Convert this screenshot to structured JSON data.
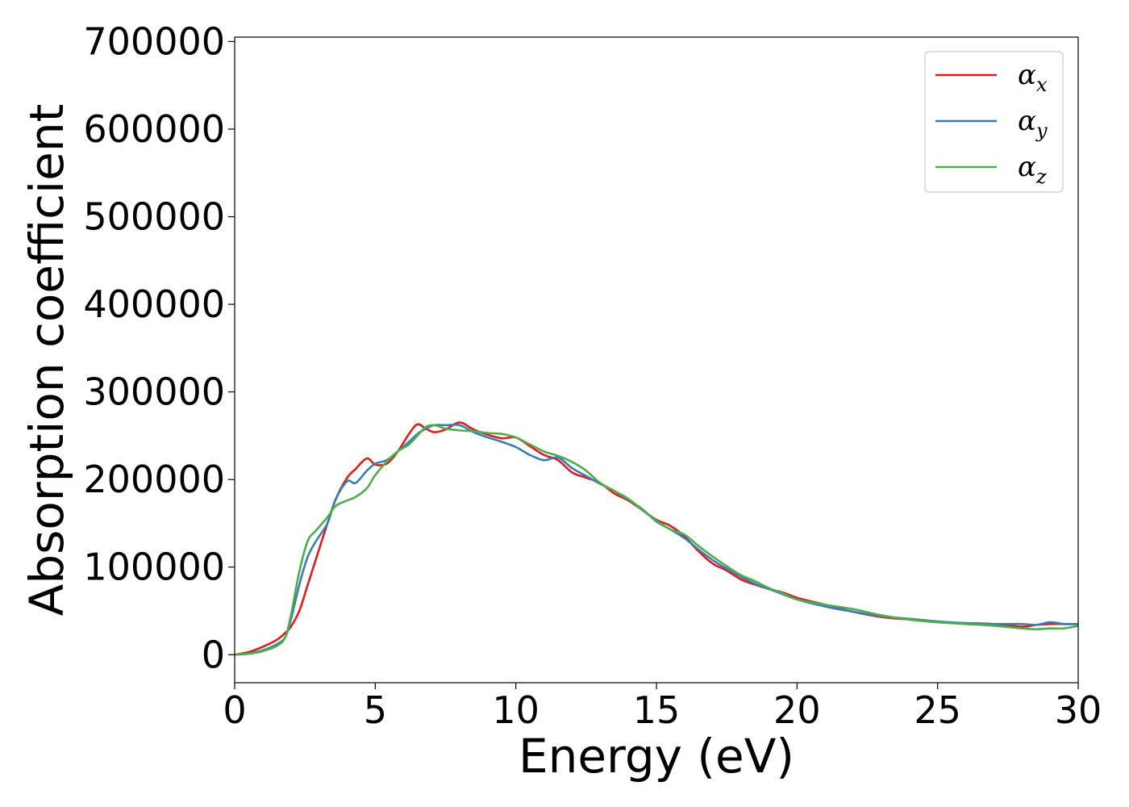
{
  "chart_data": {
    "type": "line",
    "title": "",
    "xlabel": "Energy (eV)",
    "ylabel": "Absorption coefficient",
    "xlim": [
      0,
      30
    ],
    "ylim": [
      -32000,
      705000
    ],
    "x_ticks": [
      0,
      5,
      10,
      15,
      20,
      25,
      30
    ],
    "x_tick_labels": [
      "0",
      "5",
      "10",
      "15",
      "20",
      "25",
      "30"
    ],
    "y_ticks": [
      0,
      100000,
      200000,
      300000,
      400000,
      500000,
      600000,
      700000
    ],
    "y_tick_labels": [
      "0",
      "100000",
      "200000",
      "300000",
      "400000",
      "500000",
      "600000",
      "700000"
    ],
    "grid": false,
    "legend_position": "top-right",
    "series": [
      {
        "name": "α",
        "subscript": "x",
        "color": "#e41a1c",
        "x": [
          0,
          0.5,
          1,
          1.5,
          1.8,
          2,
          2.3,
          2.6,
          2.9,
          3.3,
          3.6,
          4,
          4.3,
          4.7,
          5,
          5.4,
          5.8,
          6.2,
          6.5,
          6.8,
          7.1,
          7.5,
          8,
          8.5,
          9,
          9.5,
          10,
          10.5,
          11,
          11.5,
          12,
          12.5,
          13,
          13.5,
          14,
          14.5,
          15,
          15.5,
          16,
          16.5,
          17,
          17.5,
          18,
          18.5,
          19,
          19.5,
          20,
          21,
          22,
          23,
          24,
          25,
          26,
          27,
          28,
          28.5,
          29,
          29.5,
          30
        ],
        "y": [
          0,
          3000,
          9000,
          17000,
          25000,
          32000,
          50000,
          80000,
          110000,
          150000,
          178000,
          202000,
          212000,
          224000,
          217000,
          218000,
          232000,
          252000,
          263000,
          258000,
          254000,
          257000,
          265000,
          257000,
          251000,
          247000,
          248000,
          238000,
          228000,
          222000,
          208000,
          202000,
          196000,
          184000,
          176000,
          165000,
          154000,
          147000,
          135000,
          118000,
          104000,
          96000,
          86000,
          80000,
          75000,
          71000,
          65000,
          57000,
          49000,
          43000,
          40000,
          37000,
          36000,
          35000,
          32000,
          34000,
          35000,
          35000,
          35000
        ]
      },
      {
        "name": "α",
        "subscript": "y",
        "color": "#377eb8",
        "x": [
          0,
          0.5,
          1,
          1.5,
          1.8,
          2,
          2.3,
          2.6,
          2.9,
          3.3,
          3.6,
          4,
          4.3,
          4.7,
          5,
          5.4,
          5.8,
          6.2,
          6.5,
          6.8,
          7.1,
          7.5,
          8,
          8.5,
          9,
          9.5,
          10,
          10.5,
          11,
          11.5,
          12,
          12.5,
          13,
          13.5,
          14,
          14.5,
          15,
          15.5,
          16,
          16.5,
          17,
          17.5,
          18,
          18.5,
          19,
          19.5,
          20,
          21,
          22,
          23,
          24,
          25,
          26,
          27,
          28,
          28.5,
          29,
          29.5,
          30
        ],
        "y": [
          0,
          1500,
          5000,
          12000,
          20000,
          40000,
          80000,
          112000,
          130000,
          150000,
          178000,
          198000,
          196000,
          210000,
          218000,
          222000,
          232000,
          243000,
          252000,
          258000,
          262000,
          262000,
          262000,
          254000,
          248000,
          243000,
          237000,
          228000,
          222000,
          225000,
          213000,
          204000,
          195000,
          187000,
          177000,
          166000,
          152000,
          143000,
          133000,
          120000,
          108000,
          98000,
          89000,
          81000,
          75000,
          69000,
          63000,
          55000,
          49000,
          44000,
          41000,
          38000,
          36000,
          35000,
          35000,
          34000,
          37000,
          35000,
          35000
        ]
      },
      {
        "name": "α",
        "subscript": "z",
        "color": "#4daf4a",
        "x": [
          0,
          0.5,
          1,
          1.5,
          1.8,
          2,
          2.3,
          2.6,
          2.9,
          3.3,
          3.6,
          4,
          4.3,
          4.7,
          5,
          5.4,
          5.8,
          6.2,
          6.5,
          6.8,
          7.1,
          7.5,
          8,
          8.5,
          9,
          9.5,
          10,
          10.5,
          11,
          11.5,
          12,
          12.5,
          13,
          13.5,
          14,
          14.5,
          15,
          15.5,
          16,
          16.5,
          17,
          17.5,
          18,
          18.5,
          19,
          19.5,
          20,
          21,
          22,
          23,
          24,
          25,
          26,
          27,
          28,
          28.5,
          29,
          29.5,
          30
        ],
        "y": [
          0,
          1000,
          4000,
          10000,
          20000,
          45000,
          95000,
          130000,
          142000,
          157000,
          170000,
          176000,
          180000,
          190000,
          205000,
          220000,
          232000,
          240000,
          250000,
          260000,
          262000,
          258000,
          256000,
          255000,
          253000,
          252000,
          248000,
          240000,
          232000,
          227000,
          220000,
          210000,
          196000,
          187000,
          178000,
          165000,
          153000,
          143000,
          137000,
          124000,
          112000,
          101000,
          91000,
          84000,
          76000,
          70000,
          63000,
          57000,
          52000,
          45000,
          40000,
          37000,
          35000,
          33000,
          30000,
          29000,
          30000,
          30000,
          33000
        ]
      }
    ]
  }
}
